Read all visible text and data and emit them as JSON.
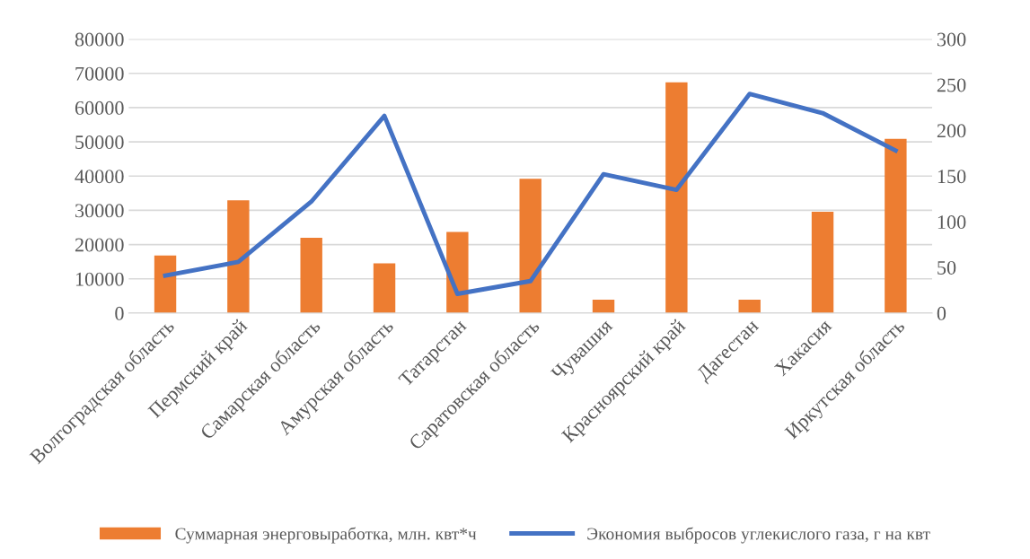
{
  "chart_data": {
    "type": "bar",
    "categories": [
      "Волгоградская область",
      "Пермский край",
      "Самарская область",
      "Амурская область",
      "Татарстан",
      "Саратовская область",
      "Чувашия",
      "Красноярский край",
      "Дагестан",
      "Хакасия",
      "Иркутская область"
    ],
    "series": [
      {
        "name": "Суммарная энерговыработка, млн. квт*ч",
        "color": "#ed7d31",
        "values": [
          16800,
          32900,
          22000,
          14500,
          23700,
          39200,
          3900,
          67400,
          3900,
          29600,
          50900
        ]
      },
      {
        "name": "Экономия выбросов углекислого газа, г на квт",
        "type": "line",
        "axis": "y2",
        "color": "#4472c4",
        "values": [
          41,
          56,
          122,
          216,
          21,
          35,
          152,
          135,
          240,
          219,
          178
        ]
      }
    ],
    "ylim": [
      0,
      80000
    ],
    "yticks": [
      0,
      10000,
      20000,
      30000,
      40000,
      50000,
      60000,
      70000,
      80000
    ],
    "y2lim": [
      0,
      300
    ],
    "y2ticks": [
      0,
      50,
      100,
      150,
      200,
      250,
      300
    ],
    "grid": "y",
    "legend": "bottom",
    "marker": "none",
    "line_style": "solid"
  }
}
